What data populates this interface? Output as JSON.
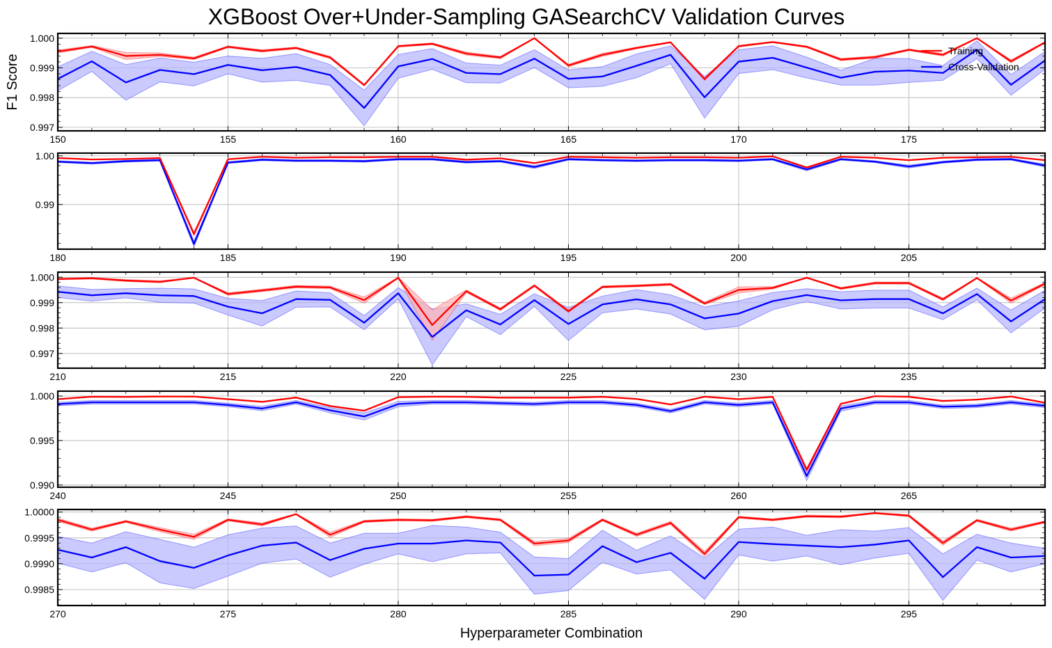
{
  "chart_data": {
    "type": "line",
    "title": "XGBoost Over+Under-Sampling GASearchCV Validation Curves",
    "xlabel": "Hyperparameter Combination",
    "ylabel": "F1 Score",
    "grid": true,
    "legend": {
      "placement": "top-right",
      "entries": [
        "Training",
        "Cross-Validation"
      ]
    },
    "colors": {
      "training": "#ff0000",
      "cv": "#0000ff",
      "training_band": "#ffb3b3",
      "cv_band": "#b3b3ff"
    },
    "panels": [
      {
        "x_start": 150,
        "xlim": [
          150,
          179
        ],
        "ylim": [
          0.99688,
          1.00016
        ],
        "yticks": [
          0.997,
          0.998,
          0.999,
          1.0
        ],
        "ytick_labels": [
          "0.997",
          "0.998",
          "0.999",
          "1.000"
        ],
        "xticks": [
          150,
          155,
          160,
          165,
          170,
          175
        ],
        "xtick_labels": [
          "150",
          "155",
          "160",
          "165",
          "170",
          "175"
        ],
        "training": [
          0.99955,
          0.99972,
          0.9994,
          0.99944,
          0.99932,
          0.99971,
          0.99957,
          0.99967,
          0.99935,
          0.99842,
          0.99973,
          0.99981,
          0.99948,
          0.99935,
          1.0,
          0.99908,
          0.99944,
          0.99967,
          0.99986,
          0.99862,
          0.99973,
          0.99987,
          0.99971,
          0.99928,
          0.99936,
          0.99961,
          0.99944,
          1.0,
          0.99922,
          0.99986
        ],
        "training_std": [
          5e-05,
          3e-05,
          0.00012,
          6e-05,
          4e-05,
          3e-05,
          4e-05,
          3e-05,
          4e-05,
          3e-05,
          3e-05,
          3e-05,
          5e-05,
          4e-05,
          1e-05,
          4e-05,
          5e-05,
          3e-05,
          2e-05,
          4e-05,
          3e-05,
          2e-05,
          3e-05,
          4e-05,
          4e-05,
          3e-05,
          4e-05,
          1e-05,
          5e-05,
          2e-05
        ],
        "cv": [
          0.99863,
          0.99922,
          0.99851,
          0.99893,
          0.99879,
          0.9991,
          0.99892,
          0.99903,
          0.99876,
          0.99765,
          0.99905,
          0.9993,
          0.99883,
          0.99879,
          0.99931,
          0.99863,
          0.99871,
          0.99907,
          0.99944,
          0.99801,
          0.99921,
          0.99934,
          0.99901,
          0.99867,
          0.99887,
          0.99891,
          0.99883,
          0.99961,
          0.99843,
          0.99925
        ],
        "cv_std": [
          0.0004,
          0.00034,
          0.0006,
          0.0004,
          0.0004,
          0.0003,
          0.0004,
          0.00045,
          0.00035,
          0.0006,
          0.0004,
          0.00035,
          0.00033,
          0.0003,
          0.0003,
          0.0003,
          0.00033,
          0.0004,
          0.0003,
          0.0007,
          0.0004,
          0.0004,
          0.00035,
          0.00025,
          0.00045,
          0.0004,
          0.00025,
          0.0003,
          0.00035,
          0.0003
        ]
      },
      {
        "x_start": 180,
        "xlim": [
          180,
          209
        ],
        "ylim": [
          0.98082,
          1.00055
        ],
        "yticks": [
          0.99,
          1.0
        ],
        "ytick_labels": [
          "0.99",
          "1.00"
        ],
        "xticks": [
          180,
          185,
          190,
          195,
          200,
          205
        ],
        "xtick_labels": [
          "180",
          "185",
          "190",
          "195",
          "200",
          "205"
        ],
        "training": [
          0.99955,
          0.99925,
          0.99935,
          0.99955,
          0.98394,
          0.9993,
          0.9998,
          0.9996,
          0.9997,
          0.9997,
          0.9998,
          0.9998,
          0.9992,
          0.9995,
          0.9985,
          0.9998,
          0.9997,
          0.9996,
          0.9997,
          0.9997,
          0.9996,
          0.9999,
          0.9976,
          0.9998,
          0.9996,
          0.9991,
          0.9996,
          0.9997,
          0.9998,
          0.9991
        ],
        "training_std": [
          5e-05,
          4e-05,
          6e-05,
          5e-05,
          0.0004,
          5e-05,
          3e-05,
          4e-05,
          4e-05,
          4e-05,
          3e-05,
          3e-05,
          5e-05,
          4e-05,
          6e-05,
          3e-05,
          3e-05,
          4e-05,
          4e-05,
          4e-05,
          4e-05,
          2e-05,
          8e-05,
          3e-05,
          4e-05,
          5e-05,
          4e-05,
          4e-05,
          3e-05,
          5e-05
        ],
        "cv": [
          0.9988,
          0.9985,
          0.9989,
          0.9991,
          0.98191,
          0.9986,
          0.9992,
          0.999,
          0.999,
          0.9989,
          0.9993,
          0.9993,
          0.9987,
          0.9989,
          0.9977,
          0.9993,
          0.9991,
          0.999,
          0.9991,
          0.9991,
          0.999,
          0.9993,
          0.9972,
          0.9993,
          0.9988,
          0.9978,
          0.9987,
          0.9992,
          0.9993,
          0.998
        ],
        "cv_std": [
          0.0002,
          0.0002,
          0.0002,
          0.0002,
          0.0006,
          0.0002,
          0.0002,
          0.0002,
          0.0002,
          0.0002,
          0.0002,
          0.0002,
          0.0002,
          0.0002,
          0.0003,
          0.0002,
          0.0002,
          0.0002,
          0.0002,
          0.0002,
          0.0002,
          0.0002,
          0.0003,
          0.0002,
          0.0002,
          0.0003,
          0.0002,
          0.0002,
          0.0002,
          0.0003
        ]
      },
      {
        "x_start": 210,
        "xlim": [
          210,
          239
        ],
        "ylim": [
          0.99642,
          1.0002
        ],
        "yticks": [
          0.997,
          0.998,
          0.999,
          1.0
        ],
        "ytick_labels": [
          "0.997",
          "0.998",
          "0.999",
          "1.000"
        ],
        "xticks": [
          210,
          215,
          220,
          225,
          230,
          235
        ],
        "xtick_labels": [
          "210",
          "215",
          "220",
          "225",
          "230",
          "235"
        ],
        "training": [
          0.99993,
          0.99996,
          0.99987,
          0.99982,
          0.99998,
          0.99934,
          0.99948,
          0.99963,
          0.9996,
          0.9991,
          0.99998,
          0.99812,
          0.99945,
          0.99874,
          0.99967,
          0.99866,
          0.99962,
          0.99966,
          0.99972,
          0.99897,
          0.9995,
          0.99958,
          0.99998,
          0.99956,
          0.99977,
          0.99977,
          0.99913,
          0.99997,
          0.99908,
          0.99975
        ],
        "training_std": [
          3e-05,
          3e-05,
          4e-05,
          4e-05,
          1e-05,
          5e-05,
          5e-05,
          5e-05,
          5e-05,
          0.00012,
          2e-05,
          0.0006,
          5e-05,
          5e-05,
          4e-05,
          5e-05,
          4e-05,
          4e-05,
          4e-05,
          5e-05,
          0.00012,
          5e-05,
          1e-05,
          4e-05,
          4e-05,
          4e-05,
          5e-05,
          2e-05,
          0.0001,
          4e-05
        ],
        "cv": [
          0.99943,
          0.99929,
          0.99937,
          0.99929,
          0.99926,
          0.99884,
          0.99858,
          0.99914,
          0.99911,
          0.99821,
          0.99937,
          0.99765,
          0.9987,
          0.99814,
          0.9991,
          0.99816,
          0.99893,
          0.99913,
          0.99893,
          0.99838,
          0.99857,
          0.99906,
          0.9993,
          0.99909,
          0.99914,
          0.99914,
          0.99858,
          0.99934,
          0.99826,
          0.99914
        ],
        "cv_std": [
          0.00023,
          0.00023,
          0.00018,
          0.00028,
          0.00028,
          0.00033,
          0.0005,
          0.00032,
          0.00028,
          0.00028,
          0.00022,
          0.0011,
          0.00025,
          0.0004,
          0.00025,
          0.00065,
          0.00033,
          0.00038,
          0.00038,
          0.00045,
          0.0005,
          0.00034,
          0.00025,
          0.00034,
          0.00035,
          0.00035,
          0.00025,
          0.00023,
          0.00045,
          0.00035
        ]
      },
      {
        "x_start": 240,
        "xlim": [
          240,
          269
        ],
        "ylim": [
          0.98975,
          1.00055
        ],
        "yticks": [
          0.99,
          0.995,
          1.0
        ],
        "ytick_labels": [
          "0.990",
          "0.995",
          "1.000"
        ],
        "xticks": [
          240,
          245,
          250,
          255,
          260,
          265
        ],
        "xtick_labels": [
          "240",
          "245",
          "250",
          "255",
          "260",
          "265"
        ],
        "training": [
          0.99965,
          0.99993,
          0.99991,
          0.99995,
          0.99994,
          0.99965,
          0.99935,
          0.99983,
          0.99888,
          0.99835,
          0.99988,
          0.99993,
          0.99992,
          0.99982,
          0.99982,
          0.99982,
          0.99992,
          0.99968,
          0.99905,
          0.99993,
          0.99965,
          0.99991,
          0.99172,
          0.99913,
          0.99998,
          0.99992,
          0.99945,
          0.9996,
          0.99995,
          0.99925
        ],
        "training_std": [
          4e-05,
          3e-05,
          3e-05,
          3e-05,
          3e-05,
          4e-05,
          5e-05,
          4e-05,
          6e-05,
          6e-05,
          3e-05,
          3e-05,
          3e-05,
          4e-05,
          4e-05,
          4e-05,
          3e-05,
          4e-05,
          5e-05,
          3e-05,
          4e-05,
          3e-05,
          0.0002,
          5e-05,
          2e-05,
          3e-05,
          4e-05,
          4e-05,
          3e-05,
          4e-05
        ],
        "cv": [
          0.9991,
          0.9993,
          0.9993,
          0.9993,
          0.9993,
          0.999,
          0.9986,
          0.9993,
          0.9984,
          0.9977,
          0.9991,
          0.9993,
          0.9993,
          0.9992,
          0.9991,
          0.9993,
          0.9993,
          0.999,
          0.9983,
          0.9993,
          0.999,
          0.9993,
          0.991,
          0.9986,
          0.9993,
          0.9993,
          0.9988,
          0.9989,
          0.9993,
          0.9989
        ],
        "cv_std": [
          0.0002,
          0.0002,
          0.0002,
          0.0002,
          0.0002,
          0.0002,
          0.00025,
          0.0002,
          0.0003,
          0.0004,
          0.0003,
          0.0002,
          0.0002,
          0.0002,
          0.0002,
          0.0002,
          0.0002,
          0.0002,
          0.0002,
          0.0002,
          0.0002,
          0.0002,
          0.0005,
          0.0003,
          0.0002,
          0.0002,
          0.0002,
          0.0002,
          0.0002,
          0.0002
        ]
      },
      {
        "x_start": 270,
        "xlim": [
          270,
          299
        ],
        "ylim": [
          0.99819,
          1.00005
        ],
        "yticks": [
          0.9985,
          0.999,
          0.9995,
          1.0
        ],
        "ytick_labels": [
          "0.9985",
          "0.9990",
          "0.9995",
          "1.0000"
        ],
        "xticks": [
          270,
          275,
          280,
          285,
          290,
          295
        ],
        "xtick_labels": [
          "270",
          "275",
          "280",
          "285",
          "290",
          "295"
        ],
        "training": [
          0.99985,
          0.99966,
          0.99982,
          0.99966,
          0.99952,
          0.99985,
          0.99976,
          0.99996,
          0.99956,
          0.99982,
          0.99985,
          0.99984,
          0.99991,
          0.99985,
          0.99939,
          0.99945,
          0.99985,
          0.99956,
          0.99979,
          0.99919,
          0.9999,
          0.99985,
          0.99992,
          0.99991,
          0.99998,
          0.99993,
          0.9994,
          0.99984,
          0.99966,
          0.99981
        ],
        "training_std": [
          3e-05,
          3e-05,
          2e-05,
          4e-05,
          5e-05,
          2e-05,
          3e-05,
          1e-05,
          5e-05,
          2e-05,
          2e-05,
          2e-05,
          2e-05,
          2e-05,
          4e-05,
          4e-05,
          2e-05,
          3e-05,
          3e-05,
          5e-05,
          2e-05,
          2e-05,
          2e-05,
          2e-05,
          1e-05,
          2e-05,
          4e-05,
          2e-05,
          3e-05,
          2e-05
        ],
        "cv": [
          0.99927,
          0.99912,
          0.99932,
          0.99905,
          0.99892,
          0.99916,
          0.99935,
          0.99941,
          0.99907,
          0.99929,
          0.99939,
          0.99939,
          0.99945,
          0.99941,
          0.99877,
          0.99879,
          0.99934,
          0.99903,
          0.99921,
          0.99871,
          0.99942,
          0.99938,
          0.99935,
          0.99932,
          0.99937,
          0.99945,
          0.99874,
          0.99932,
          0.99912,
          0.99915
        ],
        "cv_std": [
          0.00026,
          0.00028,
          0.0003,
          0.00042,
          0.0004,
          0.0004,
          0.00034,
          0.00032,
          0.00033,
          0.0003,
          0.0002,
          0.00035,
          0.00026,
          0.0002,
          0.00036,
          0.00031,
          0.00031,
          0.00023,
          0.00033,
          0.0004,
          0.00025,
          0.00033,
          0.0002,
          0.00034,
          0.00026,
          0.00025,
          0.00045,
          0.00025,
          0.00028,
          0.00015
        ]
      }
    ]
  }
}
